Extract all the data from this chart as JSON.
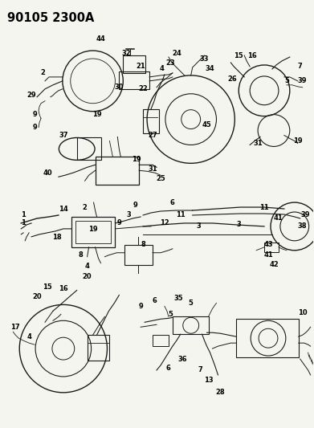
{
  "title": "90105 2300A",
  "background_color": "#f5f5f0",
  "figsize": [
    3.91,
    5.33
  ],
  "dpi": 100,
  "line_color": "#1a1a1a",
  "text_color": "#000000",
  "title_fontsize": 10.5,
  "label_fontsize": 6.0
}
